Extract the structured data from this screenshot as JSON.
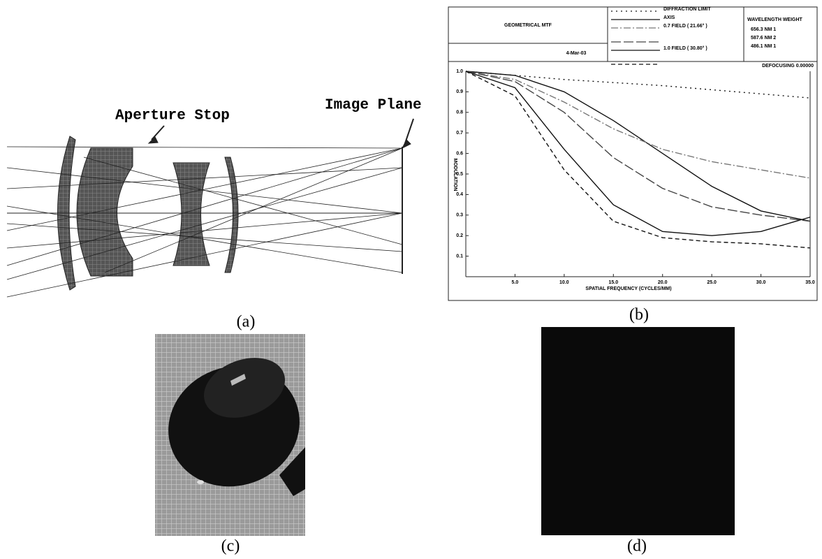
{
  "figure": {
    "panel_a": {
      "labels": [
        "Aperture Stop",
        "Image Plane"
      ],
      "caption": "(a)"
    },
    "panel_b": {
      "caption": "(b)",
      "header": {
        "title": "GEOMETRICAL MTF",
        "date": "4-Mar-03",
        "wavelength_header": "WAVELENGTH  WEIGHT",
        "wavelengths": [
          "656.3 NM   1",
          "587.6 NM   2",
          "486.1 NM   1"
        ],
        "defocusing": "DEFOCUSING   0.00000"
      }
    },
    "panel_c": {
      "caption": "(c)"
    },
    "panel_d": {
      "caption": "(d)"
    }
  },
  "chart_data": {
    "type": "line",
    "x_label": "SPATIAL FREQUENCY (CYCLES/MM)",
    "y_label": "MODULATION",
    "xlim": [
      0,
      35
    ],
    "ylim": [
      0,
      1
    ],
    "xticks": [
      {
        "value": 5,
        "label": "5.0"
      },
      {
        "value": 10,
        "label": "10.0"
      },
      {
        "value": 15,
        "label": "15.0"
      },
      {
        "value": 20,
        "label": "20.0"
      },
      {
        "value": 25,
        "label": "25.0"
      },
      {
        "value": 30,
        "label": "30.0"
      },
      {
        "value": 35,
        "label": "35.0"
      }
    ],
    "yticks": [
      {
        "value": 0.1,
        "label": "0.1"
      },
      {
        "value": 0.2,
        "label": "0.2"
      },
      {
        "value": 0.3,
        "label": "0.3"
      },
      {
        "value": 0.4,
        "label": "0.4"
      },
      {
        "value": 0.5,
        "label": "0.5"
      },
      {
        "value": 0.6,
        "label": "0.6"
      },
      {
        "value": 0.7,
        "label": "0.7"
      },
      {
        "value": 0.8,
        "label": "0.8"
      },
      {
        "value": 0.9,
        "label": "0.9"
      },
      {
        "value": 1,
        "label": "1.0"
      }
    ],
    "x": [
      0,
      5,
      10,
      15,
      20,
      25,
      30,
      35
    ],
    "series": [
      {
        "name": "DIFFRACTION LIMIT",
        "color": "#111",
        "style": "dotted",
        "values": [
          1,
          0.98,
          0.96,
          0.945,
          0.93,
          0.91,
          0.89,
          0.87
        ]
      },
      {
        "name": "AXIS",
        "color": "#111",
        "style": "solid",
        "values": [
          1,
          0.98,
          0.9,
          0.76,
          0.6,
          0.44,
          0.32,
          0.27
        ]
      },
      {
        "name": "0.7  FIELD (  21.66° )",
        "color": "#777",
        "style": "dashdot",
        "values": [
          1,
          0.96,
          0.85,
          0.72,
          0.62,
          0.56,
          0.52,
          0.48
        ]
      },
      {
        "name": "0.7  FIELD (  21.66° )",
        "color": "#444",
        "style": "longdash",
        "values": [
          1,
          0.95,
          0.8,
          0.58,
          0.43,
          0.34,
          0.3,
          0.27
        ]
      },
      {
        "name": "1.0  FIELD (  30.80° )",
        "color": "#111",
        "style": "solid",
        "values": [
          1,
          0.92,
          0.62,
          0.35,
          0.22,
          0.2,
          0.22,
          0.29
        ]
      },
      {
        "name": "1.0  FIELD (  30.80° )",
        "color": "#111",
        "style": "dashed",
        "values": [
          1,
          0.88,
          0.52,
          0.27,
          0.19,
          0.17,
          0.16,
          0.14
        ]
      }
    ]
  }
}
